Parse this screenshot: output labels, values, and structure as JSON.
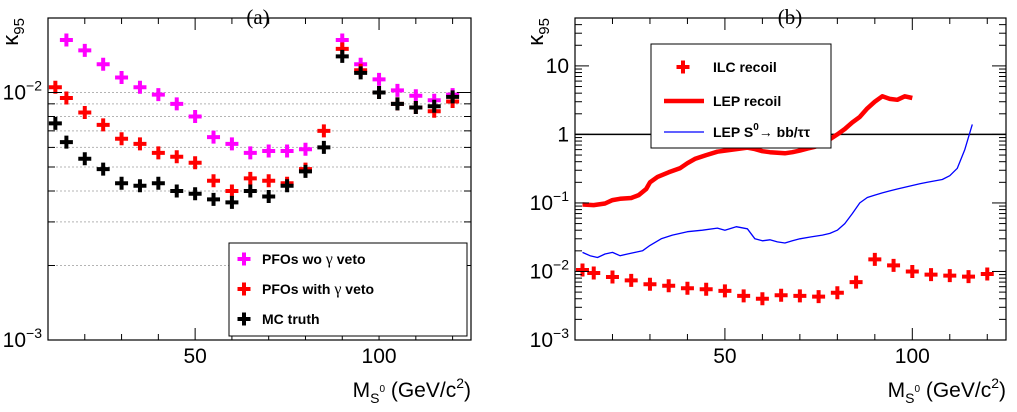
{
  "colors": {
    "magenta": "#ff00ff",
    "red": "#ff0000",
    "black": "#000000",
    "blue": "#0000ff",
    "grid": "#b4b4b4"
  },
  "chart_data": [
    {
      "type": "scatter",
      "panel_label": "(a)",
      "xlabel": {
        "main": "M",
        "sub": "S",
        "sup": "0",
        "unit": " (GeV/c",
        "unit_sup": "2",
        "unit_end": ")"
      },
      "ylabel": {
        "main": "κ",
        "sub": "95"
      },
      "xlim": [
        10,
        125
      ],
      "ylim": [
        0.001,
        0.02
      ],
      "yscale": "log",
      "grid": "horizontal dotted",
      "legend_position": "bottom-right",
      "x_ticks": [
        50,
        100
      ],
      "y_ticks": [
        {
          "value": 0.001,
          "base": "10",
          "exp": "−3"
        },
        {
          "value": 0.01,
          "base": "10",
          "exp": "−2"
        }
      ],
      "series": [
        {
          "name": "PFOs wo γ veto",
          "marker": "cross",
          "color": "#ff00ff",
          "x": [
            15,
            20,
            25,
            30,
            35,
            40,
            45,
            50,
            55,
            60,
            65,
            70,
            75,
            80,
            90,
            95,
            100,
            105,
            110,
            115,
            120
          ],
          "y": [
            0.0163,
            0.0148,
            0.013,
            0.0115,
            0.0105,
            0.0098,
            0.009,
            0.008,
            0.0066,
            0.0062,
            0.0057,
            0.0058,
            0.0058,
            0.0059,
            0.0163,
            0.013,
            0.0113,
            0.0102,
            0.0097,
            0.0093,
            0.0098
          ]
        },
        {
          "name": "PFOs with γ veto",
          "marker": "cross",
          "color": "#ff0000",
          "x": [
            12,
            15,
            20,
            25,
            30,
            35,
            40,
            45,
            50,
            55,
            60,
            65,
            70,
            75,
            80,
            85,
            90,
            95,
            100,
            105,
            110,
            115,
            120
          ],
          "y": [
            0.0105,
            0.0095,
            0.0083,
            0.0074,
            0.0065,
            0.0062,
            0.0057,
            0.0055,
            0.0052,
            0.0044,
            0.004,
            0.0045,
            0.0044,
            0.0043,
            0.0049,
            0.007,
            0.015,
            0.0123,
            0.01,
            0.009,
            0.0087,
            0.0084,
            0.0092
          ]
        },
        {
          "name": "MC truth",
          "marker": "cross",
          "color": "#000000",
          "x": [
            12,
            15,
            20,
            25,
            30,
            35,
            40,
            45,
            50,
            55,
            60,
            65,
            70,
            75,
            80,
            85,
            90,
            95,
            100,
            105,
            110,
            115,
            120
          ],
          "y": [
            0.0075,
            0.0063,
            0.0054,
            0.0049,
            0.0043,
            0.0042,
            0.0043,
            0.004,
            0.0039,
            0.0037,
            0.0036,
            0.004,
            0.0038,
            0.0042,
            0.0048,
            0.006,
            0.014,
            0.012,
            0.01,
            0.009,
            0.0087,
            0.0088,
            0.0096
          ]
        }
      ]
    },
    {
      "type": "line",
      "panel_label": "(b)",
      "xlabel": {
        "main": "M",
        "sub": "S",
        "sup": "0",
        "unit": " (GeV/c",
        "unit_sup": "2",
        "unit_end": ")"
      },
      "ylabel": {
        "main": "κ",
        "sub": "95"
      },
      "xlim": [
        10,
        125
      ],
      "ylim": [
        0.001,
        50
      ],
      "yscale": "log",
      "grid": "none",
      "legend_position": "top-left",
      "reference_line": {
        "y": 1,
        "color": "#000000"
      },
      "x_ticks": [
        50,
        100
      ],
      "y_ticks": [
        {
          "value": 0.001,
          "base": "10",
          "exp": "−3"
        },
        {
          "value": 0.01,
          "base": "10",
          "exp": "−2"
        },
        {
          "value": 0.1,
          "base": "10",
          "exp": "−1"
        },
        {
          "value": 1,
          "base": "1",
          "exp": ""
        },
        {
          "value": 10,
          "base": "10",
          "exp": ""
        }
      ],
      "series": [
        {
          "name": "ILC recoil",
          "marker": "cross",
          "color": "#ff0000",
          "legend_label": "ILC recoil",
          "x": [
            12,
            15,
            20,
            25,
            30,
            35,
            40,
            45,
            50,
            55,
            60,
            65,
            70,
            75,
            80,
            85,
            90,
            95,
            100,
            105,
            110,
            115,
            120
          ],
          "y": [
            0.0105,
            0.0095,
            0.0083,
            0.0074,
            0.0065,
            0.0062,
            0.0057,
            0.0055,
            0.0052,
            0.0044,
            0.004,
            0.0045,
            0.0044,
            0.0043,
            0.0049,
            0.007,
            0.015,
            0.0123,
            0.01,
            0.009,
            0.0087,
            0.0084,
            0.0092
          ]
        },
        {
          "name": "LEP recoil",
          "style": "thick-line",
          "color": "#ff0000",
          "legend_label": "LEP recoil",
          "x": [
            12,
            15,
            18,
            20,
            22,
            25,
            27,
            29,
            30,
            32,
            35,
            38,
            40,
            42,
            45,
            48,
            50,
            52,
            54,
            56,
            58,
            60,
            62,
            64,
            66,
            68,
            70,
            72,
            74,
            76,
            78,
            80,
            82,
            84,
            86,
            88,
            90,
            92,
            94,
            96,
            98,
            100
          ],
          "y": [
            0.095,
            0.093,
            0.098,
            0.11,
            0.115,
            0.118,
            0.13,
            0.16,
            0.2,
            0.24,
            0.28,
            0.32,
            0.38,
            0.44,
            0.5,
            0.56,
            0.58,
            0.6,
            0.62,
            0.64,
            0.61,
            0.57,
            0.55,
            0.54,
            0.53,
            0.55,
            0.58,
            0.62,
            0.66,
            0.72,
            0.85,
            1.0,
            1.2,
            1.5,
            1.8,
            2.4,
            3.0,
            3.6,
            3.3,
            3.2,
            3.6,
            3.4
          ]
        },
        {
          "name": "LEP S0→bb/ττ",
          "style": "thin-line",
          "color": "#0000ff",
          "legend_label": {
            "pre": "LEP S",
            "sup": "0",
            "post": "→ bb/ττ"
          },
          "x": [
            12,
            14,
            16,
            18,
            20,
            22,
            24,
            26,
            28,
            30,
            33,
            36,
            40,
            44,
            48,
            50,
            53,
            56,
            58,
            60,
            62,
            64,
            66,
            68,
            70,
            73,
            76,
            78,
            80,
            82,
            84,
            86,
            88,
            90,
            92,
            94,
            96,
            98,
            100,
            102,
            104,
            106,
            108,
            110,
            112,
            114,
            116
          ],
          "y": [
            0.019,
            0.017,
            0.016,
            0.018,
            0.019,
            0.017,
            0.018,
            0.019,
            0.02,
            0.024,
            0.03,
            0.034,
            0.038,
            0.04,
            0.043,
            0.04,
            0.045,
            0.042,
            0.03,
            0.028,
            0.029,
            0.027,
            0.026,
            0.028,
            0.03,
            0.032,
            0.034,
            0.036,
            0.04,
            0.05,
            0.07,
            0.1,
            0.12,
            0.13,
            0.14,
            0.15,
            0.16,
            0.17,
            0.18,
            0.19,
            0.2,
            0.21,
            0.22,
            0.25,
            0.32,
            0.6,
            1.4
          ]
        }
      ]
    }
  ]
}
